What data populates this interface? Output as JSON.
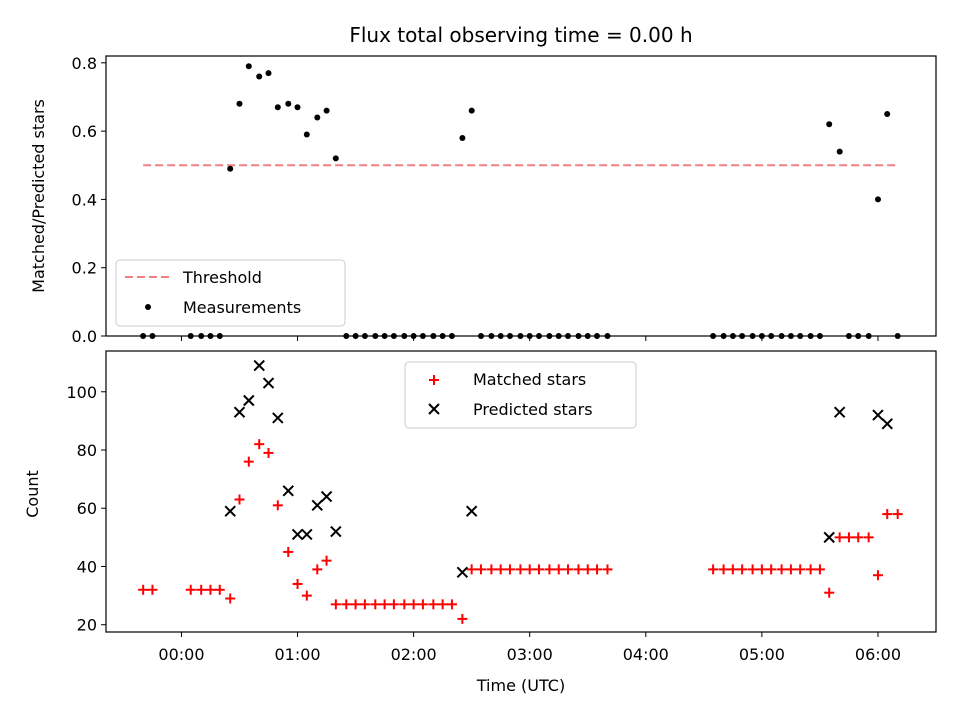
{
  "chart_data": [
    {
      "type": "scatter",
      "title": "Flux total observing time = 0.00 h",
      "xlabel": "",
      "ylabel": "Matched/Predicted stars",
      "xlim_hours": [
        -0.65,
        6.5
      ],
      "ylim": [
        0,
        0.82
      ],
      "yticks": [
        "0.0",
        "0.2",
        "0.4",
        "0.6",
        "0.8"
      ],
      "legend_location": "lower-left",
      "threshold": {
        "name": "Threshold",
        "y": 0.5,
        "x_range": [
          -0.33,
          6.17
        ],
        "color": "#f08080"
      },
      "series": [
        {
          "name": "Measurements",
          "color": "#000000",
          "marker": "dot",
          "x": [
            -0.33,
            -0.25,
            0.08,
            0.17,
            0.25,
            0.33,
            0.42,
            0.5,
            0.58,
            0.67,
            0.75,
            0.83,
            0.92,
            1.0,
            1.08,
            1.17,
            1.25,
            1.33,
            1.42,
            1.5,
            1.58,
            1.67,
            1.75,
            1.83,
            1.92,
            2.0,
            2.08,
            2.17,
            2.25,
            2.33,
            2.42,
            2.5,
            2.58,
            2.67,
            2.75,
            2.83,
            2.92,
            3.0,
            3.08,
            3.17,
            3.25,
            3.33,
            3.42,
            3.5,
            3.58,
            3.67,
            4.58,
            4.67,
            4.75,
            4.83,
            4.92,
            5.0,
            5.08,
            5.17,
            5.25,
            5.33,
            5.42,
            5.5,
            5.58,
            5.67,
            5.75,
            5.83,
            5.92,
            6.0,
            6.08,
            6.17
          ],
          "y": [
            0,
            0,
            0,
            0,
            0,
            0,
            0.49,
            0.68,
            0.79,
            0.76,
            0.77,
            0.67,
            0.68,
            0.67,
            0.59,
            0.64,
            0.66,
            0.52,
            0,
            0,
            0,
            0,
            0,
            0,
            0,
            0,
            0,
            0,
            0,
            0,
            0.58,
            0.66,
            0,
            0,
            0,
            0,
            0,
            0,
            0,
            0,
            0,
            0,
            0,
            0,
            0,
            0,
            0,
            0,
            0,
            0,
            0,
            0,
            0,
            0,
            0,
            0,
            0,
            0,
            0.62,
            0.54,
            0,
            0,
            0,
            0.4,
            0.65,
            0
          ]
        }
      ]
    },
    {
      "type": "scatter",
      "title": "",
      "xlabel": "Time (UTC)",
      "ylabel": "Count",
      "xlim_hours": [
        -0.65,
        6.5
      ],
      "ylim": [
        17.5,
        114
      ],
      "yticks": [
        "20",
        "40",
        "60",
        "80",
        "100"
      ],
      "xticks": [
        "00:00",
        "01:00",
        "02:00",
        "03:00",
        "04:00",
        "05:00",
        "06:00"
      ],
      "legend_location": "upper-center",
      "series": [
        {
          "name": "Matched stars",
          "color": "#ff0000",
          "marker": "plus",
          "x": [
            -0.33,
            -0.25,
            0.08,
            0.17,
            0.25,
            0.33,
            0.42,
            0.5,
            0.58,
            0.67,
            0.75,
            0.83,
            0.92,
            1.0,
            1.08,
            1.17,
            1.25,
            1.33,
            1.42,
            1.5,
            1.58,
            1.67,
            1.75,
            1.83,
            1.92,
            2.0,
            2.08,
            2.17,
            2.25,
            2.33,
            2.42,
            2.5,
            2.58,
            2.67,
            2.75,
            2.83,
            2.92,
            3.0,
            3.08,
            3.17,
            3.25,
            3.33,
            3.42,
            3.5,
            3.58,
            3.67,
            4.58,
            4.67,
            4.75,
            4.83,
            4.92,
            5.0,
            5.08,
            5.17,
            5.25,
            5.33,
            5.42,
            5.5,
            5.58,
            5.67,
            5.75,
            5.83,
            5.92,
            6.0,
            6.08,
            6.17
          ],
          "y": [
            32,
            32,
            32,
            32,
            32,
            32,
            29,
            63,
            76,
            82,
            79,
            61,
            45,
            34,
            30,
            39,
            42,
            27,
            27,
            27,
            27,
            27,
            27,
            27,
            27,
            27,
            27,
            27,
            27,
            27,
            22,
            39,
            39,
            39,
            39,
            39,
            39,
            39,
            39,
            39,
            39,
            39,
            39,
            39,
            39,
            39,
            39,
            39,
            39,
            39,
            39,
            39,
            39,
            39,
            39,
            39,
            39,
            39,
            31,
            50,
            50,
            50,
            50,
            37,
            58,
            58
          ]
        },
        {
          "name": "Predicted stars",
          "color": "#000000",
          "marker": "x",
          "x": [
            0.42,
            0.5,
            0.58,
            0.67,
            0.75,
            0.83,
            0.92,
            1.0,
            1.08,
            1.17,
            1.25,
            1.33,
            2.42,
            2.5,
            5.58,
            5.67,
            6.0,
            6.08
          ],
          "y": [
            59,
            93,
            97,
            109,
            103,
            91,
            66,
            51,
            51,
            61,
            64,
            52,
            38,
            59,
            50,
            93,
            92,
            89
          ]
        }
      ]
    }
  ]
}
